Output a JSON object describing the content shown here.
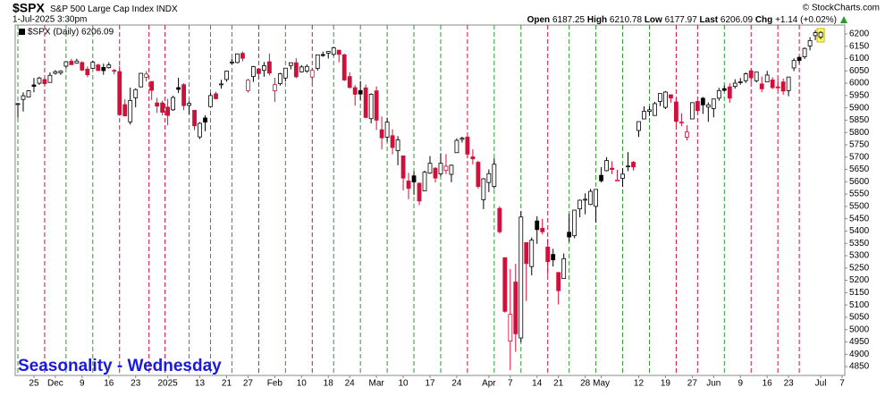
{
  "header": {
    "symbol": "$SPX",
    "name": "S&P 500 Large Cap Index",
    "exchange": "INDX",
    "timestamp": "1-Jul-2025 3:30pm",
    "copyright": "© StockCharts.com",
    "open_label": "Open",
    "open": 6187.25,
    "high_label": "High",
    "high": 6210.78,
    "low_label": "Low",
    "low": 6177.97,
    "last_label": "Last",
    "last": 6206.09,
    "chg_label": "Chg",
    "chg": "+1.14 (+0.02%)"
  },
  "chart_data": {
    "type": "candlestick",
    "title": "Seasonality - Wednesday",
    "legend": "$SPX (Daily) 6206.09",
    "up_color": "#000000",
    "down_color": "#d0103a",
    "xlim": [
      -0.5,
      154.5
    ],
    "ylim": [
      4814,
      6236
    ],
    "xticks": [
      {
        "value": 3,
        "label": "25"
      },
      {
        "value": 7,
        "label": "Dec"
      },
      {
        "value": 12,
        "label": "9"
      },
      {
        "value": 17,
        "label": "16"
      },
      {
        "value": 22,
        "label": "23"
      },
      {
        "value": 28,
        "label": "2025"
      },
      {
        "value": 34,
        "label": "13"
      },
      {
        "value": 39,
        "label": "21"
      },
      {
        "value": 43,
        "label": "27"
      },
      {
        "value": 48,
        "label": "Feb"
      },
      {
        "value": 53,
        "label": "10"
      },
      {
        "value": 58,
        "label": "18"
      },
      {
        "value": 62,
        "label": "24"
      },
      {
        "value": 67,
        "label": "Mar"
      },
      {
        "value": 72,
        "label": "10"
      },
      {
        "value": 77,
        "label": "17"
      },
      {
        "value": 82,
        "label": "24"
      },
      {
        "value": 88,
        "label": "Apr"
      },
      {
        "value": 92,
        "label": "7"
      },
      {
        "value": 97,
        "label": "14"
      },
      {
        "value": 101,
        "label": "21"
      },
      {
        "value": 106,
        "label": "28"
      },
      {
        "value": 109,
        "label": "May"
      },
      {
        "value": 116,
        "label": "12"
      },
      {
        "value": 121,
        "label": "19"
      },
      {
        "value": 126,
        "label": "27"
      },
      {
        "value": 130,
        "label": "Jun"
      },
      {
        "value": 135,
        "label": "9"
      },
      {
        "value": 140,
        "label": "16"
      },
      {
        "value": 144,
        "label": "23"
      },
      {
        "value": 150,
        "label": "Jul"
      },
      {
        "value": 154,
        "label": "7"
      }
    ],
    "yticks": [
      4850,
      4900,
      4950,
      5000,
      5050,
      5100,
      5150,
      5200,
      5250,
      5300,
      5350,
      5400,
      5450,
      5500,
      5550,
      5600,
      5650,
      5700,
      5750,
      5800,
      5850,
      5900,
      5950,
      6000,
      6050,
      6100,
      6150,
      6200
    ],
    "vlines": [
      {
        "x": 0,
        "color": "#2a9a2a"
      },
      {
        "x": 5,
        "color": "#d0103a"
      },
      {
        "x": 9,
        "color": "#2a9a2a"
      },
      {
        "x": 14,
        "color": "#2a9a2a"
      },
      {
        "x": 19,
        "color": "#d0103a"
      },
      {
        "x": 24.5,
        "color": "#d0103a"
      },
      {
        "x": 27.5,
        "color": "#d0103a"
      },
      {
        "x": 32,
        "color": "#2a9a2a"
      },
      {
        "x": 36,
        "color": "#2a9a2a"
      },
      {
        "x": 40,
        "color": "#2a9a2a"
      },
      {
        "x": 45,
        "color": "#d0103a"
      },
      {
        "x": 50,
        "color": "#2a9a2a"
      },
      {
        "x": 55,
        "color": "#d0103a"
      },
      {
        "x": 59,
        "color": "#2a9a2a"
      },
      {
        "x": 64,
        "color": "#2a9a2a"
      },
      {
        "x": 69,
        "color": "#2a9a2a"
      },
      {
        "x": 74,
        "color": "#2a9a2a"
      },
      {
        "x": 79,
        "color": "#2a9a2a"
      },
      {
        "x": 84,
        "color": "#d0103a"
      },
      {
        "x": 89,
        "color": "#2a9a2a"
      },
      {
        "x": 94,
        "color": "#2a9a2a"
      },
      {
        "x": 99,
        "color": "#d0103a"
      },
      {
        "x": 103,
        "color": "#2a9a2a"
      },
      {
        "x": 108,
        "color": "#2a9a2a"
      },
      {
        "x": 113,
        "color": "#2a9a2a"
      },
      {
        "x": 118,
        "color": "#2a9a2a"
      },
      {
        "x": 123,
        "color": "#d0103a"
      },
      {
        "x": 127,
        "color": "#d0103a"
      },
      {
        "x": 132,
        "color": "#2a9a2a"
      },
      {
        "x": 137,
        "color": "#d0103a"
      },
      {
        "x": 142,
        "color": "#d0103a"
      },
      {
        "x": 146,
        "color": "#d0103a"
      }
    ],
    "open": [
      5914,
      5934,
      5944,
      5993,
      6000,
      6015,
      6003,
      6040,
      6042,
      6069,
      6089,
      6081,
      6084,
      6057,
      6060,
      6074,
      6064,
      6063,
      6052,
      6047,
      5913,
      5843,
      5941,
      5985,
      6024,
      6007,
      5920,
      5920,
      5903,
      5892,
      5982,
      5994,
      5910,
      5890,
      5782,
      5859,
      5905,
      5957,
      5995,
      6015,
      6082,
      6084,
      6121,
      5970,
      6027,
      6058,
      6052,
      6087,
      5969,
      5998,
      6021,
      6072,
      6083,
      6046,
      6049,
      6025,
      6060,
      6116,
      6122,
      6117,
      6134,
      6115,
      6027,
      5982,
      5970,
      5981,
      5856,
      5969,
      5811,
      5781,
      5787,
      5726,
      5705,
      5603,
      5624,
      5594,
      5563,
      5635,
      5655,
      5632,
      5646,
      5630,
      5718,
      5772,
      5781,
      5701,
      5679,
      5527,
      5597,
      5581,
      5492,
      5292,
      4953,
      5193,
      4966,
      5353,
      5256,
      5441,
      5411,
      5335,
      5305,
      5232,
      5207,
      5395,
      5381,
      5490,
      5529,
      5508,
      5500,
      5626,
      5645,
      5655,
      5606,
      5614,
      5663,
      5679,
      5808,
      5855,
      5886,
      5869,
      5926,
      5902,
      5953,
      5924,
      5842,
      5781,
      5855,
      5926,
      5939,
      5903,
      5897,
      5939,
      5978,
      5985,
      5987,
      6005,
      6010,
      6050,
      6010,
      5997,
      6005,
      6013,
      5985,
      6005,
      5970,
      6062,
      6105,
      6107,
      6151,
      6193,
      6187
    ],
    "high": [
      5920,
      5963,
      5972,
      6021,
      6026,
      6020,
      6044,
      6053,
      6052,
      6089,
      6099,
      6099,
      6089,
      6068,
      6092,
      6079,
      6079,
      6085,
      6058,
      6070,
      5935,
      5982,
      5979,
      6041,
      6049,
      6007,
      5941,
      5929,
      5936,
      5949,
      6022,
      6000,
      5927,
      5890,
      5842,
      5870,
      5960,
      5965,
      6014,
      6051,
      6100,
      6119,
      6128,
      6018,
      6070,
      6062,
      6086,
      6120,
      6022,
      6042,
      6062,
      6084,
      6101,
      6073,
      6076,
      6063,
      6116,
      6128,
      6129,
      6147,
      6134,
      6120,
      6044,
      5992,
      6009,
      5994,
      5959,
      5987,
      5865,
      5860,
      5813,
      5785,
      5706,
      5636,
      5642,
      5597,
      5645,
      5704,
      5659,
      5716,
      5712,
      5670,
      5776,
      5783,
      5786,
      5732,
      5685,
      5615,
      5650,
      5695,
      5500,
      5292,
      5246,
      5267,
      5481,
      5353,
      5374,
      5460,
      5450,
      5368,
      5328,
      5232,
      5309,
      5469,
      5486,
      5528,
      5553,
      5571,
      5570,
      5659,
      5700,
      5683,
      5649,
      5655,
      5720,
      5684,
      5845,
      5906,
      5906,
      5924,
      5959,
      5968,
      5954,
      5939,
      5878,
      5829,
      5922,
      5927,
      5944,
      5922,
      5937,
      5981,
      5991,
      5999,
      6016,
      6021,
      6043,
      6060,
      6045,
      6027,
      6050,
      6024,
      6018,
      6019,
      6026,
      6101,
      6108,
      6145,
      6187,
      6215,
      6211
    ],
    "low": [
      5860,
      5885,
      5944,
      5963,
      5993,
      5989,
      6003,
      6035,
      6034,
      6061,
      6075,
      6079,
      6049,
      6024,
      6060,
      6051,
      6034,
      6059,
      6036,
      5867,
      5866,
      5832,
      5902,
      5983,
      6007,
      5932,
      5879,
      5869,
      5829,
      5888,
      5960,
      5891,
      5874,
      5809,
      5773,
      5805,
      5905,
      5934,
      5978,
      6006,
      6076,
      6081,
      6089,
      5962,
      6005,
      6015,
      6026,
      6031,
      5924,
      5990,
      6007,
      6056,
      6020,
      6044,
      6042,
      6003,
      6051,
      6107,
      6100,
      6111,
      6084,
      6009,
      5978,
      5909,
      5932,
      5858,
      5837,
      5810,
      5732,
      5762,
      5711,
      5667,
      5565,
      5529,
      5547,
      5505,
      5563,
      5632,
      5597,
      5622,
      5631,
      5598,
      5718,
      5759,
      5695,
      5670,
      5572,
      5489,
      5558,
      5571,
      5390,
      5069,
      4835,
      4910,
      4949,
      5116,
      5220,
      5348,
      5386,
      5221,
      5256,
      5102,
      5207,
      5356,
      5371,
      5456,
      5468,
      5505,
      5434,
      5597,
      5642,
      5631,
      5603,
      5579,
      5643,
      5646,
      5782,
      5854,
      5867,
      5867,
      5907,
      5895,
      5921,
      5830,
      5825,
      5768,
      5855,
      5886,
      5875,
      5843,
      5861,
      5929,
      5967,
      5921,
      5978,
      5994,
      6001,
      6003,
      6003,
      5964,
      6005,
      5976,
      5971,
      5953,
      5947,
      6049,
      6080,
      6098,
      6133,
      6175,
      6178
    ],
    "close": [
      5917,
      5949,
      5969,
      5987,
      6021,
      5998,
      6032,
      6047,
      6049,
      6087,
      6075,
      6090,
      6053,
      6034,
      6085,
      6051,
      6051,
      6074,
      6050,
      5872,
      5867,
      5930,
      5974,
      6040,
      6037,
      5971,
      5907,
      5882,
      5869,
      5942,
      5975,
      5909,
      5918,
      5827,
      5837,
      5842,
      5950,
      5937,
      5997,
      6049,
      6086,
      6119,
      6101,
      6012,
      6067,
      6039,
      6071,
      6041,
      5994,
      6038,
      6061,
      6083,
      6026,
      6066,
      6068,
      6052,
      6115,
      6115,
      6129,
      6144,
      6117,
      6013,
      5983,
      5955,
      5956,
      5861,
      5955,
      5850,
      5778,
      5842,
      5739,
      5770,
      5615,
      5573,
      5599,
      5522,
      5639,
      5675,
      5615,
      5675,
      5663,
      5667,
      5768,
      5777,
      5712,
      5693,
      5581,
      5612,
      5633,
      5671,
      5397,
      5074,
      5062,
      4983,
      5457,
      5268,
      5363,
      5406,
      5397,
      5276,
      5283,
      5158,
      5288,
      5376,
      5485,
      5525,
      5529,
      5561,
      5569,
      5604,
      5686,
      5650,
      5607,
      5631,
      5664,
      5660,
      5844,
      5886,
      5892,
      5917,
      5958,
      5964,
      5940,
      5845,
      5842,
      5802,
      5921,
      5889,
      5912,
      5912,
      5936,
      5970,
      5971,
      5939,
      6000,
      6006,
      6038,
      6022,
      6045,
      5977,
      6033,
      5982,
      5981,
      5968,
      6025,
      6092,
      6092,
      6141,
      6173,
      6205,
      6206
    ]
  }
}
